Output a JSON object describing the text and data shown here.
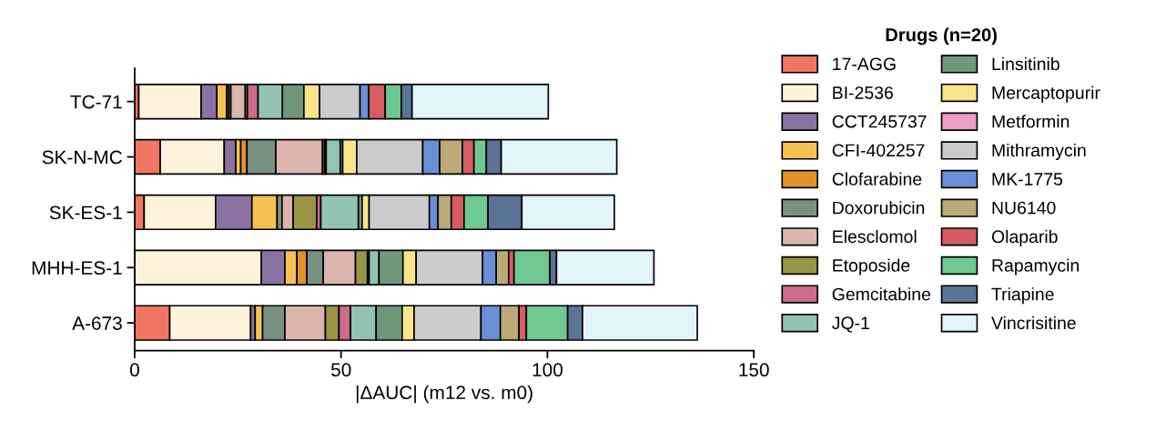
{
  "chart_data": {
    "type": "bar",
    "orientation": "horizontal",
    "stacked": true,
    "xlabel": "|ΔAUC| (m12 vs. m0)",
    "legend_title": "Drugs (n=20)",
    "legend": "right",
    "grid": false,
    "categories": [
      "TC-71",
      "SK-N-MC",
      "SK-ES-1",
      "MHH-ES-1",
      "A-673"
    ],
    "xlim": [
      0,
      150
    ],
    "xticks": [
      0,
      50,
      100,
      150
    ],
    "series": [
      {
        "name": "17-AGG",
        "color": "#f07562",
        "values": [
          1.0,
          6.2,
          2.3,
          null,
          8.5
        ]
      },
      {
        "name": "BI-2536",
        "color": "#fff3dc",
        "values": [
          15.1,
          15.5,
          17.3,
          30.7,
          19.6
        ]
      },
      {
        "name": "CCT245737",
        "color": "#8a72a3",
        "values": [
          3.8,
          2.8,
          8.8,
          5.7,
          1.1
        ]
      },
      {
        "name": "CFI-402257",
        "color": "#f5c152",
        "values": [
          2.4,
          1.2,
          6.1,
          2.9,
          1.8
        ]
      },
      {
        "name": "Clofarabine",
        "color": "#e0922a",
        "values": [
          0.5,
          1.5,
          0,
          2.4,
          0
        ]
      },
      {
        "name": "Doxorubicin",
        "color": "#78907f",
        "values": [
          0.5,
          7.0,
          1.2,
          4.0,
          5.4
        ]
      },
      {
        "name": "Elesclomol",
        "color": "#dbb4ac",
        "values": [
          3.5,
          11.3,
          2.7,
          7.8,
          9.8
        ]
      },
      {
        "name": "Etoposide",
        "color": "#9a9446",
        "values": [
          0.5,
          0.5,
          5.7,
          2.9,
          3.3
        ]
      },
      {
        "name": "Gemcitabine",
        "color": "#cd6b8a",
        "values": [
          2.6,
          0.4,
          1.0,
          0.4,
          2.8
        ]
      },
      {
        "name": "JQ-1",
        "color": "#93c3b3",
        "values": [
          5.9,
          3.4,
          9.1,
          2.4,
          6.2
        ]
      },
      {
        "name": "Linsitinib",
        "color": "#6f977a",
        "values": [
          5.2,
          0.6,
          0.9,
          5.8,
          6.3
        ]
      },
      {
        "name": "Mercaptopurir",
        "color": "#fae58a",
        "values": [
          3.8,
          3.4,
          1.7,
          3.2,
          2.9
        ]
      },
      {
        "name": "Metformin",
        "color": "#ee9dc8",
        "values": [
          0,
          0,
          0,
          0,
          0
        ]
      },
      {
        "name": "Mithramycin",
        "color": "#cbcbcb",
        "values": [
          9.8,
          16.0,
          14.6,
          16.1,
          16.2
        ]
      },
      {
        "name": "MK-1775",
        "color": "#6a8fd6",
        "values": [
          2.1,
          4.1,
          2.1,
          3.3,
          4.7
        ]
      },
      {
        "name": "NU6140",
        "color": "#bcaa76",
        "values": [
          0,
          5.5,
          3.2,
          3.0,
          4.5
        ]
      },
      {
        "name": "Olaparib",
        "color": "#d45c62",
        "values": [
          4.0,
          2.8,
          3.1,
          1.3,
          1.8
        ]
      },
      {
        "name": "Rapamycin",
        "color": "#6fc891",
        "values": [
          3.9,
          3.0,
          5.8,
          8.7,
          10.0
        ]
      },
      {
        "name": "Triapine",
        "color": "#5a7397",
        "values": [
          2.6,
          3.6,
          8.2,
          1.6,
          3.6
        ]
      },
      {
        "name": "Vincrisitine",
        "color": "#e1f5fb",
        "values": [
          33.0,
          28.0,
          22.4,
          23.6,
          27.8
        ]
      }
    ]
  }
}
